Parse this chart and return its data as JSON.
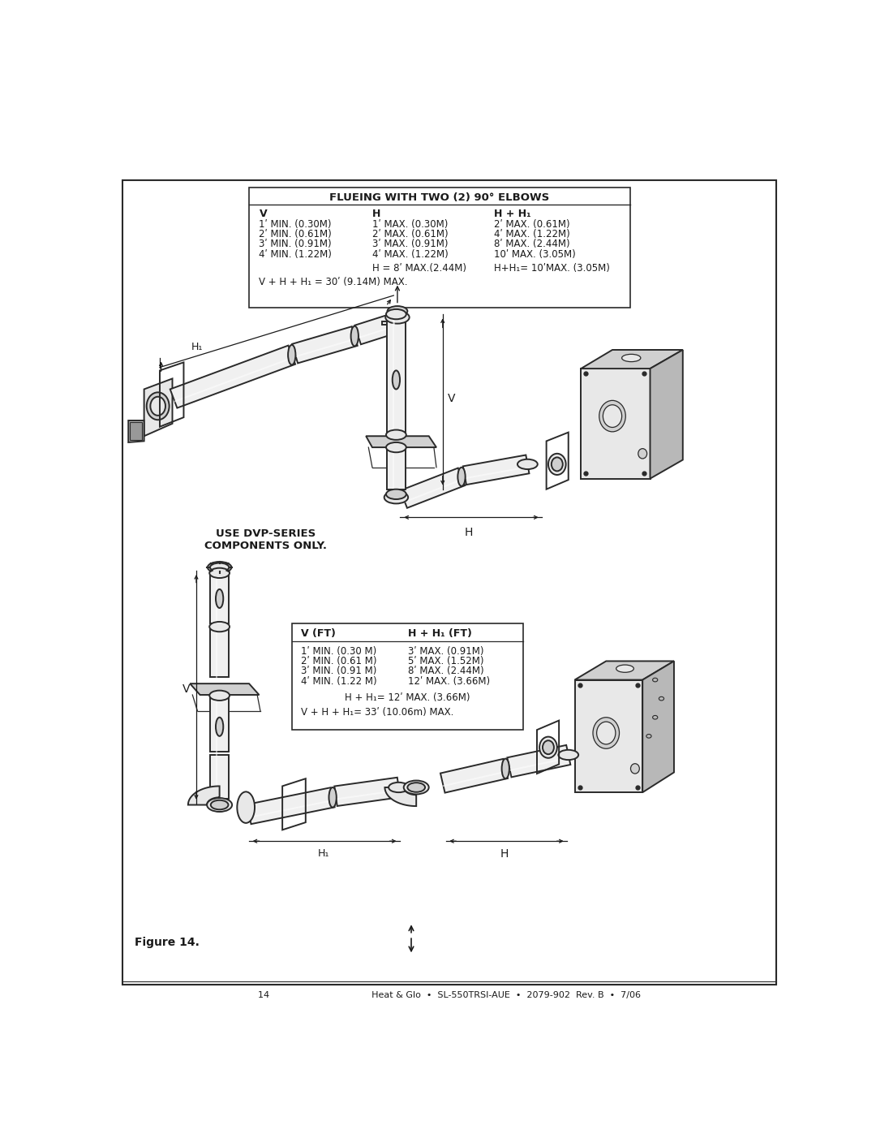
{
  "page_bg": "#ffffff",
  "border_color": "#2a2a2a",
  "text_color": "#1a1a1a",
  "diagram_color": "#2a2a2a",
  "fill_light": "#e8e8e8",
  "fill_mid": "#d0d0d0",
  "fill_dark": "#b8b8b8",
  "fill_pipe": "#f0f0f0",
  "fill_pipe_shadow": "#c8c8c8",
  "table1_title": "FLUEING WITH TWO (2) 90° ELBOWS",
  "table1_col0": "V",
  "table1_col1": "H",
  "table1_col2": "H + H₁",
  "table1_rows": [
    [
      "1ʹ MIN. (0.30M)",
      "1ʹ MAX. (0.30M)",
      "2ʹ MAX. (0.61M)"
    ],
    [
      "2ʹ MIN. (0.61M)",
      "2ʹ MAX. (0.61M)",
      "4ʹ MAX. (1.22M)"
    ],
    [
      "3ʹ MIN. (0.91M)",
      "3ʹ MAX. (0.91M)",
      "8ʹ MAX. (2.44M)"
    ],
    [
      "4ʹ MIN. (1.22M)",
      "4ʹ MAX. (1.22M)",
      "10ʹ MAX. (3.05M)"
    ]
  ],
  "table1_f1": "H = 8ʹ MAX.(2.44M)",
  "table1_f2": "H+H₁= 10ʹMAX. (3.05M)",
  "table1_f3": "V + H + H₁ = 30ʹ (9.14M) MAX.",
  "table2_col0": "V (FT)",
  "table2_col1": "H + H₁ (FT)",
  "table2_rows": [
    [
      "1ʹ MIN. (0.30 M)",
      "3ʹ MAX. (0.91M)"
    ],
    [
      "2ʹ MIN. (0.61 M)",
      "5ʹ MAX. (1.52M)"
    ],
    [
      "3ʹ MIN. (0.91 M)",
      "8ʹ MAX. (2.44M)"
    ],
    [
      "4ʹ MIN. (1.22 M)",
      "12ʹ MAX. (3.66M)"
    ]
  ],
  "table2_f1": "H + H₁= 12ʹ MAX. (3.66M)",
  "table2_f2": "V + H + H₁= 33ʹ (10.06m) MAX.",
  "use_dvp": "USE DVP-SERIES\nCOMPONENTS ONLY.",
  "figure_label": "Figure 14.",
  "footer": "14                                    Heat & Glo  •  SL-550TRSI-AUE  •  2079-902  Rev. B  •  7/06"
}
